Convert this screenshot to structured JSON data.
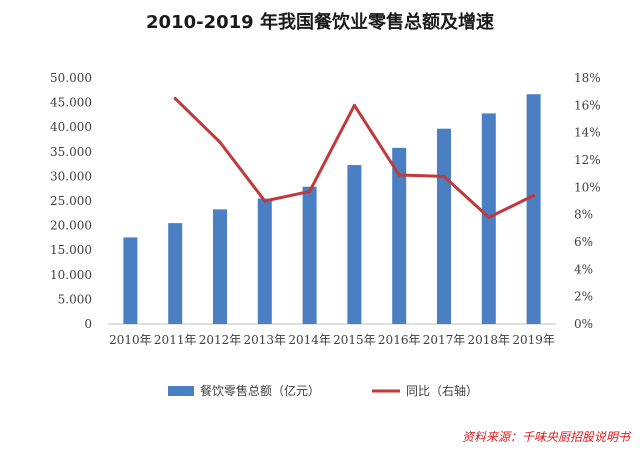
{
  "chart_data": {
    "type": "bar",
    "title": "2010-2019 年我国餐饮业零售总额及增速",
    "categories": [
      "2010年",
      "2011年",
      "2012年",
      "2013年",
      "2014年",
      "2015年",
      "2016年",
      "2017年",
      "2018年",
      "2019年"
    ],
    "series": [
      {
        "name": "餐饮零售总额（亿元）",
        "type": "bar",
        "axis": "left",
        "color": "#4a7fc4",
        "values": [
          17600,
          20500,
          23300,
          25500,
          27900,
          32300,
          35800,
          39700,
          42800,
          46700
        ]
      },
      {
        "name": "同比（右轴）",
        "type": "line",
        "axis": "right",
        "color": "#c0393b",
        "values": [
          null,
          16.5,
          13.3,
          9.0,
          9.7,
          16.0,
          10.9,
          10.8,
          7.8,
          9.4
        ]
      }
    ],
    "y_left": {
      "ylim": [
        0,
        50000
      ],
      "ticks": [
        0,
        5000,
        10000,
        15000,
        20000,
        25000,
        30000,
        35000,
        40000,
        45000,
        50000
      ],
      "tick_labels": [
        "0",
        "5.000",
        "10.000",
        "15.000",
        "20.000",
        "25.000",
        "30.000",
        "35.000",
        "40.000",
        "45.000",
        "50.000"
      ]
    },
    "y_right": {
      "ylim": [
        0,
        18
      ],
      "ticks": [
        0,
        2,
        4,
        6,
        8,
        10,
        12,
        14,
        16,
        18
      ],
      "tick_labels": [
        "0%",
        "2%",
        "4%",
        "6%",
        "8%",
        "10%",
        "12%",
        "14%",
        "16%",
        "18%"
      ]
    },
    "grid": false,
    "legend_position": "bottom"
  },
  "source_note": "资料来源：千味央厨招股说明书"
}
